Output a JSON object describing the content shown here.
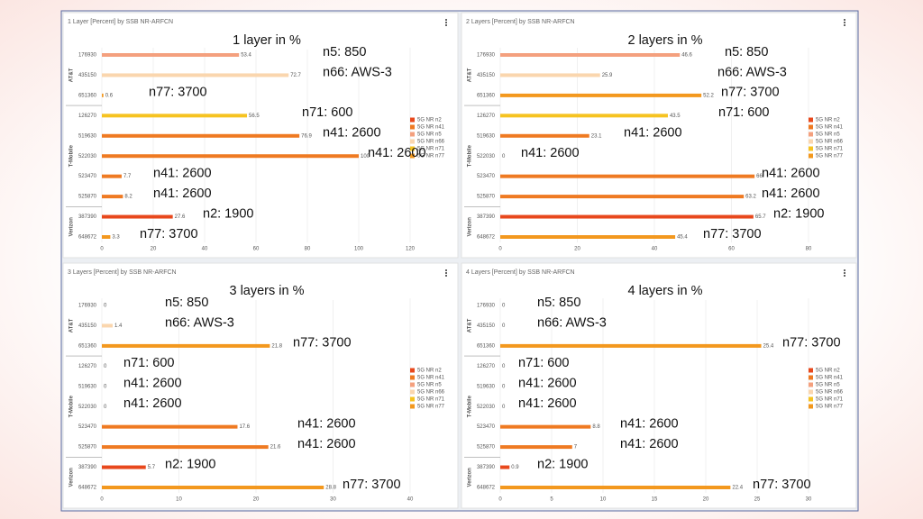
{
  "chart_data": [
    {
      "type": "bar",
      "orientation": "horizontal",
      "title": "1 Layer [Percent] by SSB NR-ARFCN",
      "heading": "1 layer in %",
      "categories": [
        "176930",
        "435150",
        "651360",
        "126270",
        "519630",
        "522030",
        "523470",
        "525870",
        "387390",
        "648672"
      ],
      "groups": [
        "AT&T",
        "AT&T",
        "AT&T",
        "T-Mobile",
        "T-Mobile",
        "T-Mobile",
        "T-Mobile",
        "T-Mobile",
        "Verizon",
        "Verizon"
      ],
      "annotations": [
        "n5: 850",
        "n66: AWS-3",
        "n77: 3700",
        "n71: 600",
        "n41: 2600",
        "n41: 2600",
        "n41: 2600",
        "n41: 2600",
        "n2: 1900",
        "n77: 3700"
      ],
      "series": [
        {
          "name": "5G NR n2",
          "color": "#e8481c",
          "values": [
            null,
            null,
            null,
            null,
            null,
            null,
            null,
            null,
            27.6,
            null
          ]
        },
        {
          "name": "5G NR n41",
          "color": "#ef7a22",
          "values": [
            null,
            null,
            null,
            null,
            76.9,
            100,
            7.7,
            8.2,
            null,
            null
          ]
        },
        {
          "name": "5G NR n5",
          "color": "#f4a07e",
          "values": [
            53.4,
            null,
            null,
            null,
            null,
            null,
            null,
            null,
            null,
            null
          ]
        },
        {
          "name": "5G NR n66",
          "color": "#fad6ae",
          "values": [
            null,
            72.7,
            null,
            null,
            null,
            null,
            null,
            null,
            null,
            null
          ]
        },
        {
          "name": "5G NR n71",
          "color": "#f6c321",
          "values": [
            null,
            null,
            null,
            56.5,
            null,
            null,
            null,
            null,
            null,
            null
          ]
        },
        {
          "name": "5G NR n77",
          "color": "#f3981e",
          "values": [
            null,
            null,
            0.6,
            null,
            null,
            null,
            null,
            null,
            null,
            3.3
          ]
        }
      ],
      "xlim": [
        0,
        120
      ],
      "xticks": [
        0,
        20,
        40,
        60,
        80,
        100,
        120
      ],
      "grid": true,
      "legend": "right"
    },
    {
      "type": "bar",
      "orientation": "horizontal",
      "title": "2 Layers [Percent] by SSB NR-ARFCN",
      "heading": "2 layers in %",
      "categories": [
        "176930",
        "435150",
        "651360",
        "126270",
        "519630",
        "522030",
        "523470",
        "525870",
        "387390",
        "648672"
      ],
      "groups": [
        "AT&T",
        "AT&T",
        "AT&T",
        "T-Mobile",
        "T-Mobile",
        "T-Mobile",
        "T-Mobile",
        "T-Mobile",
        "Verizon",
        "Verizon"
      ],
      "annotations": [
        "n5: 850",
        "n66: AWS-3",
        "n77: 3700",
        "n71: 600",
        "n41: 2600",
        "n41: 2600",
        "n41: 2600",
        "n41: 2600",
        "n2: 1900",
        "n77: 3700"
      ],
      "series": [
        {
          "name": "5G NR n2",
          "color": "#e8481c",
          "values": [
            null,
            null,
            null,
            null,
            null,
            null,
            null,
            null,
            65.7,
            null
          ]
        },
        {
          "name": "5G NR n41",
          "color": "#ef7a22",
          "values": [
            null,
            null,
            null,
            null,
            23.1,
            0,
            66,
            63.2,
            null,
            null
          ]
        },
        {
          "name": "5G NR n5",
          "color": "#f4a07e",
          "values": [
            46.6,
            null,
            null,
            null,
            null,
            null,
            null,
            null,
            null,
            null
          ]
        },
        {
          "name": "5G NR n66",
          "color": "#fad6ae",
          "values": [
            null,
            25.9,
            null,
            null,
            null,
            null,
            null,
            null,
            null,
            null
          ]
        },
        {
          "name": "5G NR n71",
          "color": "#f6c321",
          "values": [
            null,
            null,
            null,
            43.5,
            null,
            null,
            null,
            null,
            null,
            null
          ]
        },
        {
          "name": "5G NR n77",
          "color": "#f3981e",
          "values": [
            null,
            null,
            52.2,
            null,
            null,
            null,
            null,
            null,
            null,
            45.4
          ]
        }
      ],
      "xlim": [
        0,
        80
      ],
      "xticks": [
        0,
        20,
        40,
        60,
        80
      ],
      "grid": true,
      "legend": "right"
    },
    {
      "type": "bar",
      "orientation": "horizontal",
      "title": "3 Layers [Percent] by SSB NR-ARFCN",
      "heading": "3 layers in %",
      "categories": [
        "176930",
        "435150",
        "651360",
        "126270",
        "519630",
        "522030",
        "523470",
        "525870",
        "387390",
        "648672"
      ],
      "groups": [
        "AT&T",
        "AT&T",
        "AT&T",
        "T-Mobile",
        "T-Mobile",
        "T-Mobile",
        "T-Mobile",
        "T-Mobile",
        "Verizon",
        "Verizon"
      ],
      "annotations": [
        "n5: 850",
        "n66: AWS-3",
        "n77: 3700",
        "n71: 600",
        "n41: 2600",
        "n41: 2600",
        "n41: 2600",
        "n41: 2600",
        "n2: 1900",
        "n77: 3700"
      ],
      "series": [
        {
          "name": "5G NR n2",
          "color": "#e8481c",
          "values": [
            null,
            null,
            null,
            null,
            null,
            null,
            null,
            null,
            5.7,
            null
          ]
        },
        {
          "name": "5G NR n41",
          "color": "#ef7a22",
          "values": [
            null,
            null,
            null,
            null,
            0,
            0,
            17.6,
            21.6,
            null,
            null
          ]
        },
        {
          "name": "5G NR n5",
          "color": "#f4a07e",
          "values": [
            0,
            null,
            null,
            null,
            null,
            null,
            null,
            null,
            null,
            null
          ]
        },
        {
          "name": "5G NR n66",
          "color": "#fad6ae",
          "values": [
            null,
            1.4,
            null,
            null,
            null,
            null,
            null,
            null,
            null,
            null
          ]
        },
        {
          "name": "5G NR n71",
          "color": "#f6c321",
          "values": [
            null,
            null,
            null,
            0,
            null,
            null,
            null,
            null,
            null,
            null
          ]
        },
        {
          "name": "5G NR n77",
          "color": "#f3981e",
          "values": [
            null,
            null,
            21.8,
            null,
            null,
            null,
            null,
            null,
            null,
            28.8
          ]
        }
      ],
      "xlim": [
        0,
        40
      ],
      "xticks": [
        0,
        10,
        20,
        30,
        40
      ],
      "grid": true,
      "legend": "right"
    },
    {
      "type": "bar",
      "orientation": "horizontal",
      "title": "4 Layers [Percent] by SSB NR-ARFCN",
      "heading": "4 layers in %",
      "categories": [
        "176930",
        "435150",
        "651360",
        "126270",
        "519630",
        "522030",
        "523470",
        "525870",
        "387390",
        "648672"
      ],
      "groups": [
        "AT&T",
        "AT&T",
        "AT&T",
        "T-Mobile",
        "T-Mobile",
        "T-Mobile",
        "T-Mobile",
        "T-Mobile",
        "Verizon",
        "Verizon"
      ],
      "annotations": [
        "n5: 850",
        "n66: AWS-3",
        "n77: 3700",
        "n71: 600",
        "n41: 2600",
        "n41: 2600",
        "n41: 2600",
        "n41: 2600",
        "n2: 1900",
        "n77: 3700"
      ],
      "series": [
        {
          "name": "5G NR n2",
          "color": "#e8481c",
          "values": [
            null,
            null,
            null,
            null,
            null,
            null,
            null,
            null,
            0.9,
            null
          ]
        },
        {
          "name": "5G NR n41",
          "color": "#ef7a22",
          "values": [
            null,
            null,
            null,
            null,
            0,
            0,
            8.8,
            7,
            null,
            null
          ]
        },
        {
          "name": "5G NR n5",
          "color": "#f4a07e",
          "values": [
            0,
            null,
            null,
            null,
            null,
            null,
            null,
            null,
            null,
            null
          ]
        },
        {
          "name": "5G NR n66",
          "color": "#fad6ae",
          "values": [
            null,
            0,
            null,
            null,
            null,
            null,
            null,
            null,
            null,
            null
          ]
        },
        {
          "name": "5G NR n71",
          "color": "#f6c321",
          "values": [
            null,
            null,
            null,
            0,
            null,
            null,
            null,
            null,
            null,
            null
          ]
        },
        {
          "name": "5G NR n77",
          "color": "#f3981e",
          "values": [
            null,
            null,
            25.4,
            null,
            null,
            null,
            null,
            null,
            null,
            22.4
          ]
        }
      ],
      "xlim": [
        0,
        30
      ],
      "xticks": [
        0,
        5,
        10,
        15,
        20,
        25,
        30
      ],
      "grid": true,
      "legend": "right"
    }
  ]
}
